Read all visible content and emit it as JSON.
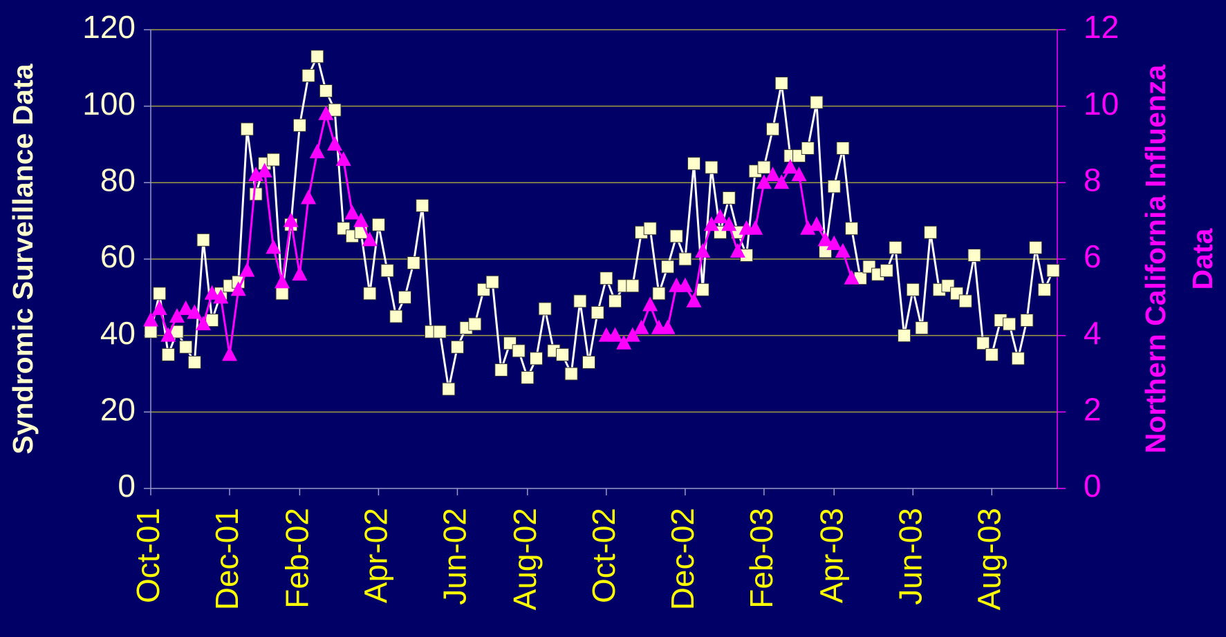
{
  "chart_data": {
    "type": "line",
    "ylabel": "Syndromic Surveillance Data",
    "y2label": [
      "Northern California Influenza",
      "Data"
    ],
    "categories": [
      "Oct-01",
      null,
      null,
      null,
      null,
      null,
      null,
      null,
      null,
      "Dec-01",
      null,
      null,
      null,
      null,
      null,
      null,
      null,
      "Feb-02",
      null,
      null,
      null,
      null,
      null,
      null,
      null,
      null,
      "Apr-02",
      null,
      null,
      null,
      null,
      null,
      null,
      null,
      null,
      "Jun-02",
      null,
      null,
      null,
      null,
      null,
      null,
      null,
      "Aug-02",
      null,
      null,
      null,
      null,
      null,
      null,
      null,
      null,
      "Oct-02",
      null,
      null,
      null,
      null,
      null,
      null,
      null,
      null,
      "Dec-02",
      null,
      null,
      null,
      null,
      null,
      null,
      null,
      null,
      "Feb-03",
      null,
      null,
      null,
      null,
      null,
      null,
      null,
      "Apr-03",
      null,
      null,
      null,
      null,
      null,
      null,
      null,
      null,
      "Jun-03",
      null,
      null,
      null,
      null,
      null,
      null,
      null,
      null,
      "Aug-03",
      null,
      null,
      null,
      null,
      null,
      null,
      null
    ],
    "series": [
      {
        "color": "#ffffcc",
        "marker": "square",
        "axis": "y",
        "values": [
          41,
          51,
          35,
          41,
          37,
          33,
          65,
          44,
          51,
          53,
          54,
          94,
          77,
          85,
          86,
          51,
          69,
          95,
          108,
          113,
          104,
          99,
          68,
          66,
          67,
          51,
          69,
          57,
          45,
          50,
          59,
          74,
          41,
          41,
          26,
          37,
          42,
          43,
          52,
          54,
          31,
          38,
          36,
          29,
          34,
          47,
          36,
          35,
          30,
          49,
          33,
          46,
          55,
          49,
          53,
          53,
          67,
          68,
          51,
          58,
          66,
          60,
          85,
          52,
          84,
          67,
          76,
          67,
          61,
          83,
          84,
          94,
          106,
          87,
          87,
          89,
          101,
          62,
          79,
          89,
          68,
          55,
          58,
          56,
          57,
          63,
          40,
          52,
          42,
          67,
          52,
          53,
          51,
          49,
          61,
          38,
          35,
          44,
          43,
          34,
          44,
          63,
          52,
          57
        ]
      },
      {
        "color": "#ff00ff",
        "marker": "triangle",
        "axis": "y2",
        "values": [
          4.4,
          4.7,
          4.0,
          4.5,
          4.7,
          4.6,
          4.3,
          5.1,
          5.0,
          3.5,
          5.2,
          5.7,
          8.2,
          8.3,
          6.3,
          5.4,
          7.0,
          5.6,
          7.6,
          8.8,
          9.8,
          9.0,
          8.6,
          7.2,
          7.0,
          6.5,
          null,
          null,
          null,
          null,
          null,
          null,
          null,
          null,
          null,
          null,
          null,
          null,
          null,
          null,
          null,
          null,
          null,
          null,
          null,
          null,
          null,
          null,
          null,
          null,
          null,
          null,
          4.0,
          4.0,
          3.8,
          4.0,
          4.2,
          4.8,
          4.2,
          4.2,
          5.3,
          5.3,
          4.9,
          6.2,
          6.9,
          7.1,
          6.9,
          6.2,
          6.8,
          6.8,
          8.0,
          8.2,
          8.0,
          8.4,
          8.2,
          6.8,
          6.9,
          6.5,
          6.4,
          6.2,
          5.5,
          null,
          null,
          null,
          null,
          null,
          null,
          null,
          null,
          null,
          null,
          null,
          null,
          null,
          null,
          null,
          null,
          null,
          null,
          null,
          null,
          null,
          null,
          null
        ]
      }
    ],
    "ylim": [
      0,
      120
    ],
    "yticks": [
      0,
      20,
      40,
      60,
      80,
      100,
      120
    ],
    "y2lim": [
      0,
      12
    ],
    "y2ticks": [
      0,
      2,
      4,
      6,
      8,
      10,
      12
    ],
    "grid": true
  }
}
